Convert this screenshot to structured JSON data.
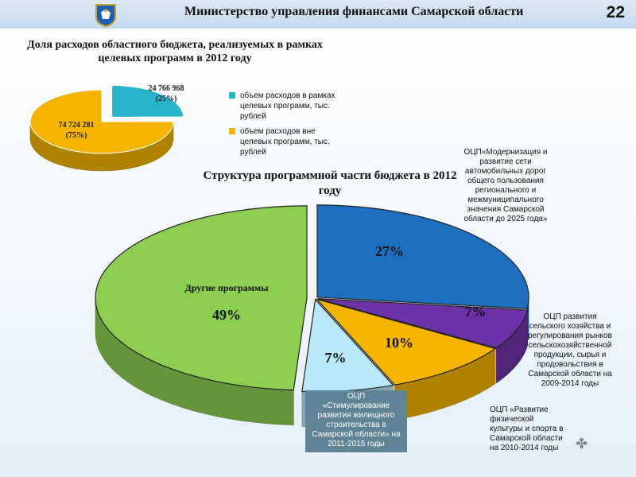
{
  "header": {
    "title": "Министерство управления финансами Самарской области",
    "page_number": "22"
  },
  "colors": {
    "cyan": "#2ab4cc",
    "yellow": "#f5b400",
    "blue": "#1f6fc1",
    "purple": "#6e32a8",
    "light_blue": "#b9e8f7",
    "green": "#8ccf50"
  },
  "chart_data": [
    {
      "type": "pie",
      "title": "Доля расходов областного бюджета, реализуемых в рамках целевых программ в 2012 году",
      "unit": "тыс. рублей",
      "slices": [
        {
          "name": "объем расходов в рамках целевых программ, тыс. рублей",
          "value": 24766968,
          "label": "24 766 968",
          "percent_label": "(25%)",
          "color": "#2ab4cc",
          "exploded": true
        },
        {
          "name": "объем расходов вне целевых программ, тыс. рублей",
          "value": 74724281,
          "label": "74 724 281",
          "percent_label": "(75%)",
          "color": "#f5b400",
          "exploded": false
        }
      ],
      "legend_position": "right"
    },
    {
      "type": "pie",
      "title": "Структура программной части бюджета в 2012 году",
      "slices": [
        {
          "name": "ОЦП «Модернизация и развитие сети автомобильных дорог общего пользования регионального и межмуниципального значения Самарской области до 2025 года»",
          "value": 27,
          "label": "27%",
          "color": "#1f6fc1"
        },
        {
          "name": "ОЦП развития сельского хозяйства и регулирования рынков сельскохозяйственной продукции, сырья и продовольствия в Самарской области на 2009-2014 годы",
          "value": 7,
          "label": "7%",
          "color": "#6e32a8"
        },
        {
          "name": "ОЦП «Развитие физической культуры и спорта в Самарской области на 2010-2014 годы»",
          "value": 10,
          "label": "10%",
          "color": "#f5b400"
        },
        {
          "name": "ОЦП «Стимулирование развития жилищного строительства в Самарской области» на 2011-2015 годы",
          "value": 7,
          "label": "7%",
          "color": "#b9e8f7"
        },
        {
          "name": "Другие программы",
          "value": 49,
          "label": "49%",
          "color": "#8ccf50"
        }
      ],
      "notes": {
        "roads": "ОЦП«Модернизация и развитие сети автомобильных дорог общего пользования регионального и межмуниципального значения Самарской области до 2025 года»",
        "agri": "ОЦП развития сельского хозяйства и регулирования рынков сельскохозяйственной продукции, сырья и продовольствия в Самарской области на 2009-2014 годы",
        "sport": "ОЦП «Развитие физической культуры и спорта в Самарской области на 2010-2014 годы",
        "housing_lines": [
          "ОЦП",
          "«Стимулирование",
          "развития жилищного",
          "строительства в",
          "Самарской области» на",
          "2011-2015 годы"
        ]
      },
      "other_label": "Другие программы"
    }
  ]
}
